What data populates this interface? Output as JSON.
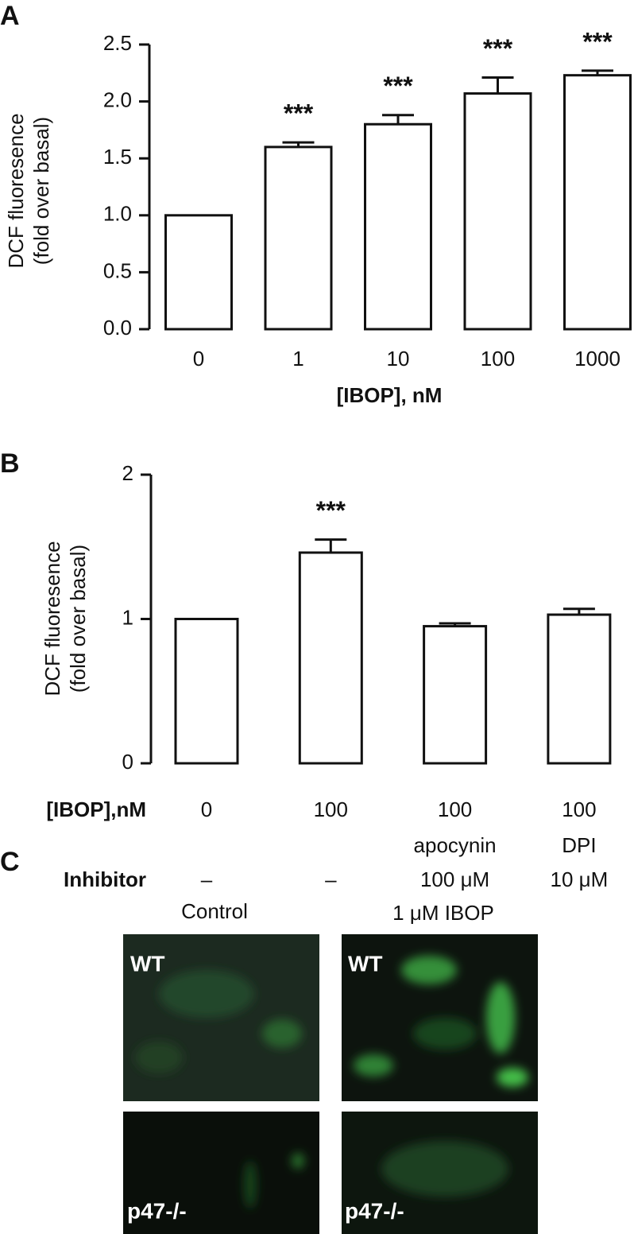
{
  "chart_data": [
    {
      "type": "bar",
      "panel_label": "A",
      "ylabel": [
        "DCF fluoresence",
        "(fold over basal)"
      ],
      "xlabel": "[IBOP], nM",
      "categories": [
        "0",
        "1",
        "10",
        "100",
        "1000"
      ],
      "values": [
        1.0,
        1.6,
        1.8,
        2.07,
        2.23
      ],
      "errors": [
        0,
        0.04,
        0.08,
        0.14,
        0.04
      ],
      "annotations": [
        null,
        "***",
        "***",
        "***",
        "***"
      ],
      "color": "#ffffff",
      "ylim": [
        0,
        2.5
      ],
      "yticks": [
        {
          "value": 0,
          "label": "0.0"
        },
        0.5,
        {
          "value": 1,
          "label": "1.0"
        },
        1.5,
        {
          "value": 2,
          "label": "2.0"
        },
        2.5
      ]
    },
    {
      "type": "bar",
      "panel_label": "B",
      "ylabel": [
        "DCF fluoresence",
        "(fold over basal)"
      ],
      "categories_label": "[IBOP],nM",
      "categories": [
        "0",
        "100",
        "100",
        "100"
      ],
      "inhibitor_label": "Inhibitor",
      "inhibitors": [
        [
          "–"
        ],
        [
          "–"
        ],
        [
          "apocynin",
          "100 μM"
        ],
        [
          "DPI",
          "10 μM"
        ]
      ],
      "values": [
        1.0,
        1.46,
        0.95,
        1.03
      ],
      "errors": [
        0,
        0.09,
        0.02,
        0.04
      ],
      "annotations": [
        null,
        "***",
        null,
        null
      ],
      "color": "#ffffff",
      "ylim": [
        0,
        2
      ],
      "yticks": [
        0,
        1,
        2
      ]
    }
  ],
  "panel_c": {
    "label": "C",
    "columns": [
      "Control",
      "1 μM IBOP"
    ],
    "images": [
      [
        "WT",
        "WT"
      ],
      [
        "p47-/-",
        "p47-/-"
      ]
    ]
  }
}
